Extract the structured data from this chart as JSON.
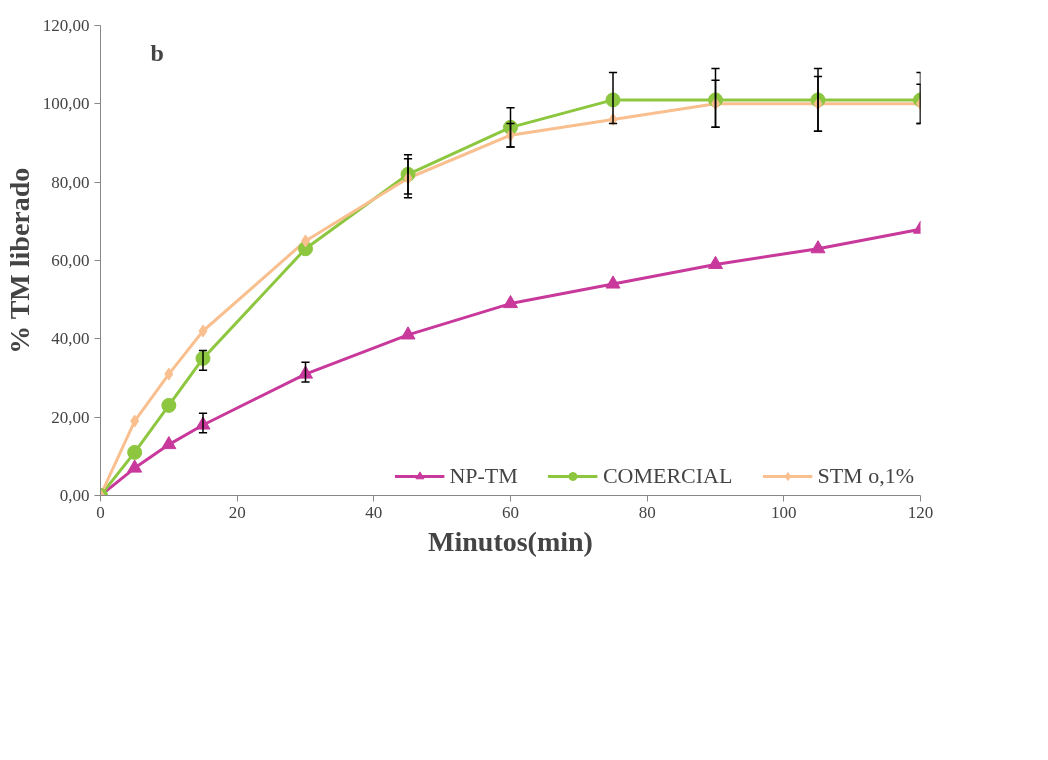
{
  "chart_data": {
    "type": "line",
    "xlabel": "Minutos(min)",
    "ylabel": "% TM liberado",
    "annotations": [
      "b"
    ],
    "x": [
      0,
      5,
      10,
      15,
      30,
      45,
      60,
      75,
      90,
      105,
      120
    ],
    "series": [
      {
        "name": "NP-TM",
        "color": "#c8399b",
        "marker": "triangle",
        "values": [
          0,
          7,
          13,
          18,
          31,
          41,
          49,
          54,
          59,
          63,
          68
        ],
        "errors": [
          null,
          null,
          null,
          [
            16,
            21
          ],
          [
            29,
            34
          ],
          null,
          null,
          null,
          null,
          null,
          null
        ]
      },
      {
        "name": "COMERCIAL",
        "color": "#8dc63f",
        "marker": "circle",
        "values": [
          0,
          11,
          23,
          35,
          63,
          82,
          94,
          101,
          101,
          101,
          101
        ],
        "errors": [
          null,
          null,
          null,
          [
            32,
            37
          ],
          null,
          [
            77,
            87
          ],
          [
            89,
            99
          ],
          [
            95,
            108
          ],
          [
            94,
            109
          ],
          [
            93,
            109
          ],
          [
            95,
            108
          ]
        ]
      },
      {
        "name": "STM o,1%",
        "color": "#f9bf8f",
        "marker": "diamond",
        "values": [
          0,
          19,
          31,
          42,
          65,
          81,
          92,
          96,
          100,
          100,
          100
        ],
        "errors": [
          null,
          null,
          null,
          null,
          null,
          [
            76,
            86
          ],
          [
            89,
            95
          ],
          null,
          [
            94,
            106
          ],
          [
            93,
            107
          ],
          [
            95,
            105
          ]
        ]
      }
    ],
    "xlim": [
      0,
      120
    ],
    "xticks": [
      0,
      20,
      40,
      60,
      80,
      100,
      120
    ],
    "ylim": [
      0,
      120
    ],
    "yticks": [
      {
        "value": 0,
        "label": "0,00"
      },
      {
        "value": 20,
        "label": "20,00"
      },
      {
        "value": 40,
        "label": "40,00"
      },
      {
        "value": 60,
        "label": "60,00"
      },
      {
        "value": 80,
        "label": "80,00"
      },
      {
        "value": 100,
        "label": "100,00"
      },
      {
        "value": 120,
        "label": "120,00"
      }
    ],
    "grid": false,
    "legend": "bottom"
  }
}
